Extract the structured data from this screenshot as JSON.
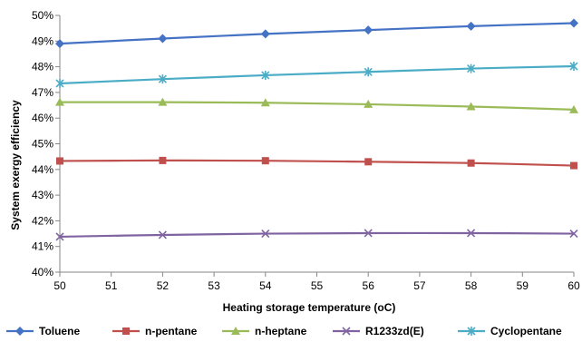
{
  "chart_data": {
    "type": "line",
    "xlabel": "Heating storage temperature (",
    "xlabel_unit": "oC",
    "xlabel_close": ")",
    "ylabel": "System exergy efficiency",
    "x": [
      50,
      52,
      54,
      56,
      58,
      60
    ],
    "xlim": [
      50,
      60
    ],
    "x_ticks": [
      "50",
      "51",
      "52",
      "53",
      "54",
      "55",
      "56",
      "57",
      "58",
      "59",
      "60"
    ],
    "ylim": [
      40,
      50
    ],
    "y_ticks": [
      "40%",
      "41%",
      "42%",
      "43%",
      "44%",
      "45%",
      "46%",
      "47%",
      "48%",
      "49%",
      "50%"
    ],
    "grid": false,
    "legend_position": "bottom",
    "series": [
      {
        "name": "Toluene",
        "color": "#4472C4",
        "marker": "diamond",
        "values": [
          48.9,
          49.1,
          49.28,
          49.43,
          49.58,
          49.7
        ]
      },
      {
        "name": "n-pentane",
        "color": "#C0504D",
        "marker": "square",
        "values": [
          44.33,
          44.35,
          44.34,
          44.3,
          44.25,
          44.15
        ]
      },
      {
        "name": "n-heptane",
        "color": "#9BBB59",
        "marker": "triangle",
        "values": [
          46.62,
          46.62,
          46.6,
          46.54,
          46.45,
          46.33
        ]
      },
      {
        "name": "R1233zd(E)",
        "color": "#8064A2",
        "marker": "x",
        "values": [
          41.38,
          41.45,
          41.5,
          41.52,
          41.52,
          41.5
        ]
      },
      {
        "name": "Cyclopentane",
        "color": "#4BACC6",
        "marker": "star",
        "values": [
          47.35,
          47.52,
          47.67,
          47.8,
          47.93,
          48.02
        ]
      }
    ]
  }
}
